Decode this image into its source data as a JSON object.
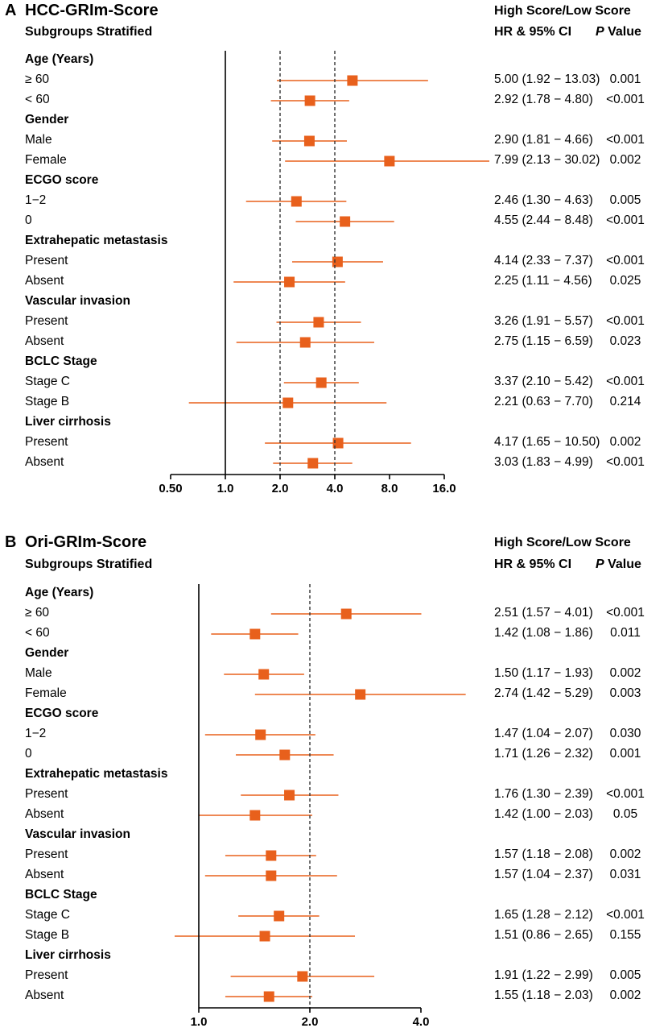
{
  "colors": {
    "marker": "#e8601c",
    "axis": "#000000",
    "refline": "#333333"
  },
  "chart_data": [
    {
      "panel": "A",
      "type": "forest",
      "title": "HCC-GRIm-Score",
      "subtitle": "Subgroups Stratified",
      "header_group": "High Score/Low Score",
      "header_ci": "HR & 95% CI",
      "header_p_italic": "P",
      "header_p_rest": " Value",
      "x_scale": "log2",
      "xlim": [
        0.5,
        16
      ],
      "x_ticks": [
        "0.50",
        "1.0",
        "2.0",
        "4.0",
        "8.0",
        "16.0"
      ],
      "x_tick_values": [
        0.5,
        1,
        2,
        4,
        8,
        16
      ],
      "solid_ref": 1,
      "dashed_refs": [
        2,
        4
      ],
      "groups": [
        {
          "label": "Age (Years)",
          "rows": [
            {
              "label": "≥ 60",
              "hr": 5.0,
              "lo": 1.92,
              "hi": 13.03,
              "ci_text": "5.00 (1.92 − 13.03)",
              "p": "0.001"
            },
            {
              "label": "< 60",
              "hr": 2.92,
              "lo": 1.78,
              "hi": 4.8,
              "ci_text": "2.92 (1.78 − 4.80)",
              "p": "<0.001"
            }
          ]
        },
        {
          "label": "Gender",
          "rows": [
            {
              "label": "Male",
              "hr": 2.9,
              "lo": 1.81,
              "hi": 4.66,
              "ci_text": "2.90 (1.81 − 4.66)",
              "p": "<0.001"
            },
            {
              "label": "Female",
              "hr": 7.99,
              "lo": 2.13,
              "hi": 30.02,
              "ci_text": "7.99 (2.13 − 30.02)",
              "p": "0.002"
            }
          ]
        },
        {
          "label": "ECGO score",
          "rows": [
            {
              "label": "1−2",
              "hr": 2.46,
              "lo": 1.3,
              "hi": 4.63,
              "ci_text": "2.46 (1.30 − 4.63)",
              "p": "0.005"
            },
            {
              "label": "0",
              "hr": 4.55,
              "lo": 2.44,
              "hi": 8.48,
              "ci_text": "4.55 (2.44 − 8.48)",
              "p": "<0.001"
            }
          ]
        },
        {
          "label": "Extrahepatic metastasis",
          "rows": [
            {
              "label": "Present",
              "hr": 4.14,
              "lo": 2.33,
              "hi": 7.37,
              "ci_text": "4.14 (2.33 − 7.37)",
              "p": "<0.001"
            },
            {
              "label": "Absent",
              "hr": 2.25,
              "lo": 1.11,
              "hi": 4.56,
              "ci_text": "2.25 (1.11 − 4.56)",
              "p": "0.025"
            }
          ]
        },
        {
          "label": "Vascular invasion",
          "rows": [
            {
              "label": "Present",
              "hr": 3.26,
              "lo": 1.91,
              "hi": 5.57,
              "ci_text": "3.26 (1.91 − 5.57)",
              "p": "<0.001"
            },
            {
              "label": "Absent",
              "hr": 2.75,
              "lo": 1.15,
              "hi": 6.59,
              "ci_text": "2.75 (1.15 − 6.59)",
              "p": "0.023"
            }
          ]
        },
        {
          "label": "BCLC Stage",
          "rows": [
            {
              "label": "Stage C",
              "hr": 3.37,
              "lo": 2.1,
              "hi": 5.42,
              "ci_text": "3.37 (2.10 − 5.42)",
              "p": "<0.001"
            },
            {
              "label": "Stage B",
              "hr": 2.21,
              "lo": 0.63,
              "hi": 7.7,
              "ci_text": "2.21 (0.63 − 7.70)",
              "p": "0.214"
            }
          ]
        },
        {
          "label": "Liver cirrhosis",
          "rows": [
            {
              "label": "Present",
              "hr": 4.17,
              "lo": 1.65,
              "hi": 10.5,
              "ci_text": "4.17 (1.65 − 10.50)",
              "p": "0.002"
            },
            {
              "label": "Absent",
              "hr": 3.03,
              "lo": 1.83,
              "hi": 4.99,
              "ci_text": "3.03 (1.83 − 4.99)",
              "p": "<0.001"
            }
          ]
        }
      ]
    },
    {
      "panel": "B",
      "type": "forest",
      "title": "Ori-GRIm-Score",
      "subtitle": "Subgroups Stratified",
      "header_group": "High Score/Low Score",
      "header_ci": "HR & 95% CI",
      "header_p_italic": "P",
      "header_p_rest": " Value",
      "x_scale": "log2",
      "xlim": [
        1,
        4
      ],
      "x_ticks": [
        "1.0",
        "2.0",
        "4.0"
      ],
      "x_tick_values": [
        1,
        2,
        4
      ],
      "solid_ref": 1,
      "dashed_refs": [
        2
      ],
      "groups": [
        {
          "label": "Age (Years)",
          "rows": [
            {
              "label": "≥ 60",
              "hr": 2.51,
              "lo": 1.57,
              "hi": 4.01,
              "ci_text": "2.51 (1.57 − 4.01)",
              "p": "<0.001"
            },
            {
              "label": "< 60",
              "hr": 1.42,
              "lo": 1.08,
              "hi": 1.86,
              "ci_text": "1.42 (1.08 − 1.86)",
              "p": "0.011"
            }
          ]
        },
        {
          "label": "Gender",
          "rows": [
            {
              "label": "Male",
              "hr": 1.5,
              "lo": 1.17,
              "hi": 1.93,
              "ci_text": "1.50 (1.17 − 1.93)",
              "p": "0.002"
            },
            {
              "label": "Female",
              "hr": 2.74,
              "lo": 1.42,
              "hi": 5.29,
              "ci_text": "2.74 (1.42 − 5.29)",
              "p": "0.003"
            }
          ]
        },
        {
          "label": "ECGO score",
          "rows": [
            {
              "label": "1−2",
              "hr": 1.47,
              "lo": 1.04,
              "hi": 2.07,
              "ci_text": "1.47 (1.04 − 2.07)",
              "p": "0.030"
            },
            {
              "label": "0",
              "hr": 1.71,
              "lo": 1.26,
              "hi": 2.32,
              "ci_text": "1.71 (1.26 − 2.32)",
              "p": "0.001"
            }
          ]
        },
        {
          "label": "Extrahepatic metastasis",
          "rows": [
            {
              "label": "Present",
              "hr": 1.76,
              "lo": 1.3,
              "hi": 2.39,
              "ci_text": "1.76 (1.30 − 2.39)",
              "p": "<0.001"
            },
            {
              "label": "Absent",
              "hr": 1.42,
              "lo": 1.0,
              "hi": 2.03,
              "ci_text": "1.42 (1.00 − 2.03)",
              "p": "0.05"
            }
          ]
        },
        {
          "label": "Vascular invasion",
          "rows": [
            {
              "label": "Present",
              "hr": 1.57,
              "lo": 1.18,
              "hi": 2.08,
              "ci_text": "1.57 (1.18 − 2.08)",
              "p": "0.002"
            },
            {
              "label": "Absent",
              "hr": 1.57,
              "lo": 1.04,
              "hi": 2.37,
              "ci_text": "1.57 (1.04 − 2.37)",
              "p": "0.031"
            }
          ]
        },
        {
          "label": "BCLC Stage",
          "rows": [
            {
              "label": "Stage C",
              "hr": 1.65,
              "lo": 1.28,
              "hi": 2.12,
              "ci_text": "1.65 (1.28 − 2.12)",
              "p": "<0.001"
            },
            {
              "label": "Stage B",
              "hr": 1.51,
              "lo": 0.86,
              "hi": 2.65,
              "ci_text": "1.51 (0.86 − 2.65)",
              "p": "0.155"
            }
          ]
        },
        {
          "label": "Liver cirrhosis",
          "rows": [
            {
              "label": "Present",
              "hr": 1.91,
              "lo": 1.22,
              "hi": 2.99,
              "ci_text": "1.91 (1.22 − 2.99)",
              "p": "0.005"
            },
            {
              "label": "Absent",
              "hr": 1.55,
              "lo": 1.18,
              "hi": 2.03,
              "ci_text": "1.55 (1.18 − 2.03)",
              "p": "0.002"
            }
          ]
        }
      ]
    }
  ]
}
